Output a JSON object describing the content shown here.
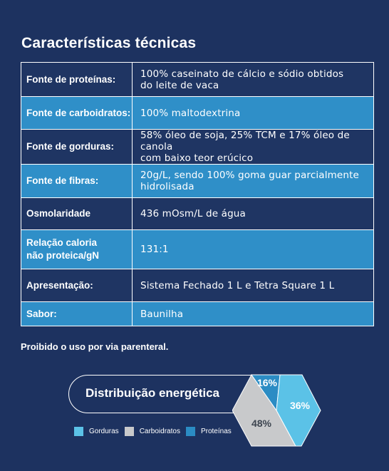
{
  "page": {
    "title": "Características técnicas",
    "notice": "Proibido o uso por via parenteral."
  },
  "specs": [
    {
      "label": "Fonte de proteínas:",
      "value_lines": [
        "100% caseinato de cálcio e sódio obtidos",
        "do leite de vaca"
      ],
      "tone": "dark"
    },
    {
      "label": "Fonte de carboidratos:",
      "value_lines": [
        "100% maltodextrina"
      ],
      "tone": "light"
    },
    {
      "label": "Fonte de gorduras:",
      "value_lines": [
        "58% óleo de soja, 25% TCM e 17% óleo de canola",
        "com baixo teor erúcico"
      ],
      "tone": "dark"
    },
    {
      "label": "Fonte de fibras:",
      "value_lines": [
        "20g/L, sendo 100% goma guar parcialmente",
        "hidrolisada"
      ],
      "tone": "light"
    },
    {
      "label": "Osmolaridade",
      "value_lines": [
        "436 mOsm/L de água"
      ],
      "tone": "dark"
    },
    {
      "label_lines": [
        "Relação caloria",
        "não proteica/gN"
      ],
      "value_lines": [
        "131:1"
      ],
      "tone": "light"
    },
    {
      "label": "Apresentação:",
      "value_lines": [
        "Sistema Fechado 1 L e Tetra Square 1 L"
      ],
      "tone": "dark"
    },
    {
      "label": "Sabor:",
      "value_lines": [
        "Baunilha"
      ],
      "tone": "light"
    }
  ],
  "energy": {
    "title": "Distribuição energética",
    "legend": [
      {
        "label": "Gorduras",
        "color": "#5bc2e7"
      },
      {
        "label": "Carboidratos",
        "color": "#c8c9cb"
      },
      {
        "label": "Proteínas",
        "color": "#2b8cc4"
      }
    ]
  },
  "chart_data": {
    "type": "pie",
    "title": "Distribuição energética",
    "categories": [
      "Gorduras",
      "Carboidratos",
      "Proteínas"
    ],
    "values": [
      36,
      48,
      16
    ],
    "labels": [
      "36%",
      "48%",
      "16%"
    ],
    "colors": [
      "#5bc2e7",
      "#c8c9cb",
      "#2b8cc4"
    ],
    "legend_position": "bottom-left",
    "shape": "hexagon"
  }
}
